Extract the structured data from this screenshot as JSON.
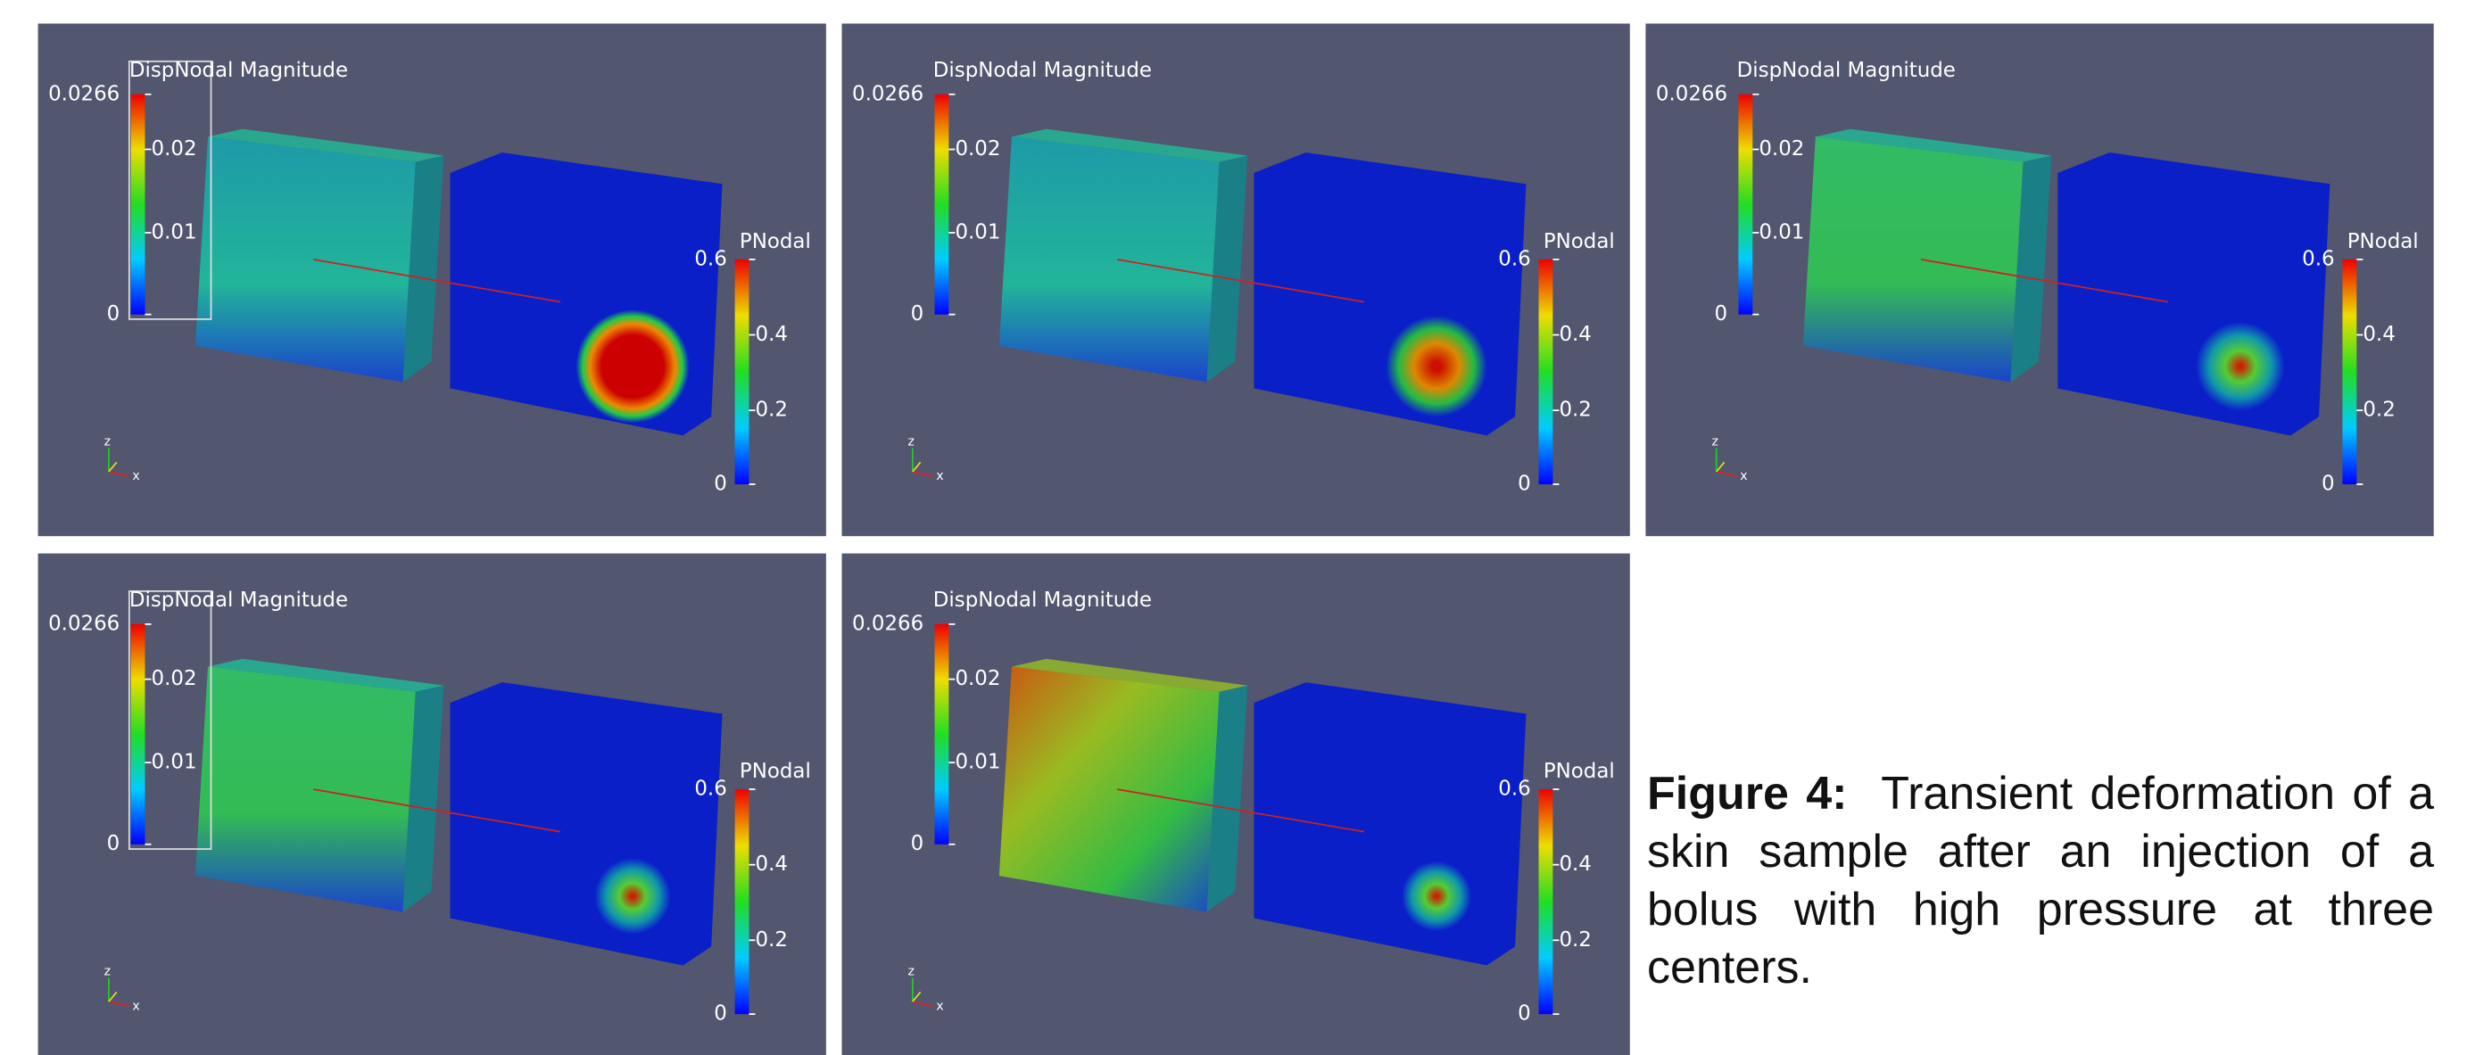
{
  "panels": [
    {
      "disp_title": "DispNodal Magnitude",
      "disp_ticks": [
        "0.0266",
        "0.02",
        "0.01",
        "0"
      ],
      "p_title": "PNodal",
      "p_ticks": [
        "0.6",
        "0.4",
        "0.2",
        "0"
      ],
      "axis_labels": [
        "z",
        "x"
      ]
    },
    {
      "disp_title": "DispNodal Magnitude",
      "disp_ticks": [
        "0.0266",
        "0.02",
        "0.01",
        "0"
      ],
      "p_title": "PNodal",
      "p_ticks": [
        "0.6",
        "0.4",
        "0.2",
        "0"
      ],
      "axis_labels": [
        "z",
        "x"
      ]
    },
    {
      "disp_title": "DispNodal Magnitude",
      "disp_ticks": [
        "0.0266",
        "0.02",
        "0.01",
        "0"
      ],
      "p_title": "PNodal",
      "p_ticks": [
        "0.6",
        "0.4",
        "0.2",
        "0"
      ],
      "axis_labels": [
        "z",
        "x"
      ]
    },
    {
      "disp_title": "DispNodal Magnitude",
      "disp_ticks": [
        "0.0266",
        "0.02",
        "0.01",
        "0"
      ],
      "p_title": "PNodal",
      "p_ticks": [
        "0.6",
        "0.4",
        "0.2",
        "0"
      ],
      "axis_labels": [
        "z",
        "x"
      ]
    },
    {
      "disp_title": "DispNodal Magnitude",
      "disp_ticks": [
        "0.0266",
        "0.02",
        "0.01",
        "0"
      ],
      "p_title": "PNodal",
      "p_ticks": [
        "0.6",
        "0.4",
        "0.2",
        "0"
      ],
      "axis_labels": [
        "z",
        "x"
      ]
    }
  ],
  "caption": {
    "label": "Figure 4:",
    "text": "Transient deformation of a skin sample after an injection of a bolus with high pressure at three centers."
  }
}
